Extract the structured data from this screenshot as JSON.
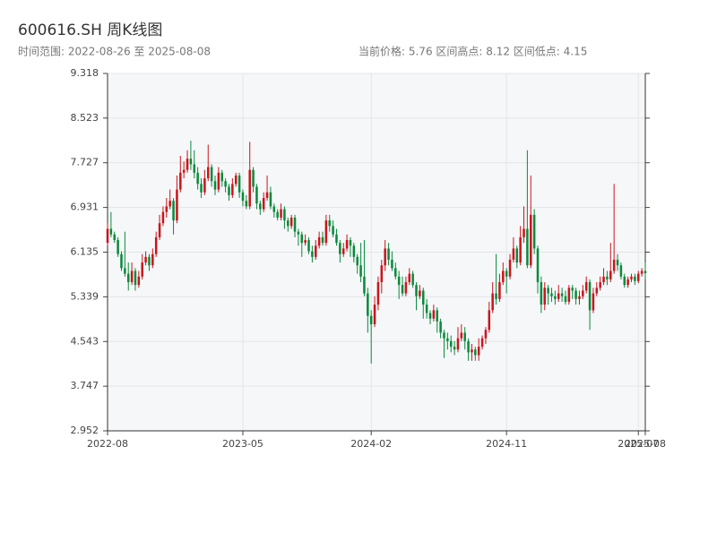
{
  "chart_data": {
    "type": "candlestick",
    "title": "600616.SH 周K线图",
    "subtitle_left": "时间范围: 2022-08-26 至 2025-08-08",
    "subtitle_right": "当前价格: 5.76  区间高点: 8.12  区间低点: 4.15",
    "up_color": "#c8161d",
    "down_color": "#0a8a3c",
    "grid": true,
    "ylim": [
      2.952,
      9.318
    ],
    "yticks": [
      2.952,
      3.747,
      4.543,
      5.339,
      6.135,
      6.931,
      7.727,
      8.523,
      9.318
    ],
    "xlim": [
      0,
      155
    ],
    "xticks": [
      {
        "value": 0,
        "label": "2022-08"
      },
      {
        "value": 39,
        "label": "2023-05"
      },
      {
        "value": 76,
        "label": "2024-02"
      },
      {
        "value": 115,
        "label": "2024-11"
      },
      {
        "value": 153,
        "label": "2025-07"
      },
      {
        "value": 155,
        "label": "2025-08"
      }
    ],
    "ohlc": [
      [
        6.3,
        6.65,
        6.25,
        6.55
      ],
      [
        6.55,
        6.85,
        6.4,
        6.45
      ],
      [
        6.45,
        6.5,
        6.3,
        6.35
      ],
      [
        6.35,
        6.4,
        6.05,
        6.1
      ],
      [
        6.1,
        6.15,
        5.8,
        5.85
      ],
      [
        5.85,
        6.5,
        5.7,
        5.75
      ],
      [
        5.75,
        5.95,
        5.45,
        5.6
      ],
      [
        5.6,
        5.95,
        5.55,
        5.8
      ],
      [
        5.8,
        5.85,
        5.45,
        5.55
      ],
      [
        5.55,
        5.8,
        5.5,
        5.7
      ],
      [
        5.7,
        6.1,
        5.65,
        5.95
      ],
      [
        5.95,
        6.15,
        5.9,
        6.05
      ],
      [
        6.05,
        6.1,
        5.8,
        5.9
      ],
      [
        5.9,
        6.2,
        5.85,
        6.1
      ],
      [
        6.1,
        6.5,
        6.05,
        6.4
      ],
      [
        6.4,
        6.8,
        6.35,
        6.65
      ],
      [
        6.65,
        6.95,
        6.6,
        6.85
      ],
      [
        6.85,
        7.1,
        6.75,
        6.95
      ],
      [
        6.95,
        7.25,
        6.9,
        7.05
      ],
      [
        7.05,
        7.1,
        6.45,
        6.7
      ],
      [
        6.7,
        7.5,
        6.65,
        7.25
      ],
      [
        7.25,
        7.85,
        7.2,
        7.55
      ],
      [
        7.55,
        7.75,
        7.45,
        7.6
      ],
      [
        7.6,
        7.95,
        7.55,
        7.8
      ],
      [
        7.8,
        8.12,
        7.6,
        7.7
      ],
      [
        7.7,
        7.95,
        7.45,
        7.55
      ],
      [
        7.55,
        7.65,
        7.25,
        7.35
      ],
      [
        7.35,
        7.45,
        7.1,
        7.2
      ],
      [
        7.2,
        7.6,
        7.15,
        7.45
      ],
      [
        7.45,
        8.05,
        7.4,
        7.65
      ],
      [
        7.65,
        7.7,
        7.3,
        7.4
      ],
      [
        7.4,
        7.5,
        7.15,
        7.25
      ],
      [
        7.25,
        7.65,
        7.2,
        7.55
      ],
      [
        7.55,
        7.6,
        7.3,
        7.4
      ],
      [
        7.4,
        7.45,
        7.2,
        7.3
      ],
      [
        7.3,
        7.35,
        7.05,
        7.15
      ],
      [
        7.15,
        7.45,
        7.1,
        7.35
      ],
      [
        7.35,
        7.55,
        7.3,
        7.5
      ],
      [
        7.5,
        7.55,
        7.1,
        7.2
      ],
      [
        7.2,
        7.25,
        6.95,
        7.05
      ],
      [
        7.05,
        7.15,
        6.9,
        6.95
      ],
      [
        6.95,
        8.1,
        6.9,
        7.6
      ],
      [
        7.6,
        7.65,
        7.2,
        7.3
      ],
      [
        7.3,
        7.35,
        6.9,
        7.0
      ],
      [
        7.0,
        7.05,
        6.8,
        6.9
      ],
      [
        6.9,
        7.2,
        6.85,
        7.1
      ],
      [
        7.1,
        7.5,
        7.05,
        7.2
      ],
      [
        7.2,
        7.3,
        6.9,
        6.95
      ],
      [
        6.95,
        7.0,
        6.75,
        6.85
      ],
      [
        6.85,
        6.9,
        6.7,
        6.75
      ],
      [
        6.75,
        7.0,
        6.7,
        6.9
      ],
      [
        6.9,
        6.95,
        6.55,
        6.7
      ],
      [
        6.7,
        6.75,
        6.5,
        6.6
      ],
      [
        6.6,
        6.8,
        6.55,
        6.75
      ],
      [
        6.75,
        6.8,
        6.4,
        6.5
      ],
      [
        6.5,
        6.55,
        6.25,
        6.45
      ],
      [
        6.45,
        6.5,
        6.05,
        6.3
      ],
      [
        6.3,
        6.45,
        6.25,
        6.35
      ],
      [
        6.35,
        6.4,
        6.1,
        6.15
      ],
      [
        6.15,
        6.25,
        5.95,
        6.05
      ],
      [
        6.05,
        6.35,
        6.0,
        6.25
      ],
      [
        6.25,
        6.5,
        6.2,
        6.4
      ],
      [
        6.4,
        6.5,
        6.25,
        6.3
      ],
      [
        6.3,
        6.8,
        6.25,
        6.7
      ],
      [
        6.7,
        6.8,
        6.5,
        6.6
      ],
      [
        6.6,
        6.7,
        6.4,
        6.45
      ],
      [
        6.45,
        6.55,
        6.25,
        6.3
      ],
      [
        6.3,
        6.35,
        5.95,
        6.1
      ],
      [
        6.1,
        6.3,
        6.05,
        6.2
      ],
      [
        6.2,
        6.45,
        6.15,
        6.35
      ],
      [
        6.35,
        6.4,
        6.05,
        6.25
      ],
      [
        6.25,
        6.3,
        5.95,
        6.05
      ],
      [
        6.05,
        6.1,
        5.75,
        5.9
      ],
      [
        5.9,
        6.3,
        5.6,
        5.7
      ],
      [
        5.7,
        6.35,
        5.35,
        5.4
      ],
      [
        5.4,
        5.5,
        4.7,
        5.0
      ],
      [
        5.0,
        5.1,
        4.15,
        4.85
      ],
      [
        4.85,
        5.35,
        4.8,
        5.2
      ],
      [
        5.2,
        5.7,
        5.1,
        5.6
      ],
      [
        5.6,
        6.0,
        5.4,
        5.9
      ],
      [
        5.9,
        6.35,
        5.8,
        6.2
      ],
      [
        6.2,
        6.3,
        5.9,
        6.0
      ],
      [
        6.0,
        6.15,
        5.8,
        5.85
      ],
      [
        5.85,
        5.95,
        5.65,
        5.7
      ],
      [
        5.7,
        5.8,
        5.3,
        5.55
      ],
      [
        5.55,
        5.7,
        5.35,
        5.4
      ],
      [
        5.4,
        5.7,
        5.35,
        5.6
      ],
      [
        5.6,
        5.85,
        5.55,
        5.75
      ],
      [
        5.75,
        5.8,
        5.5,
        5.55
      ],
      [
        5.55,
        5.6,
        5.1,
        5.35
      ],
      [
        5.35,
        5.55,
        5.3,
        5.45
      ],
      [
        5.45,
        5.5,
        4.95,
        5.2
      ],
      [
        5.2,
        5.3,
        4.95,
        5.05
      ],
      [
        5.05,
        5.1,
        4.85,
        4.95
      ],
      [
        4.95,
        5.2,
        4.9,
        5.1
      ],
      [
        5.1,
        5.15,
        4.7,
        4.9
      ],
      [
        4.9,
        4.95,
        4.6,
        4.7
      ],
      [
        4.7,
        4.75,
        4.25,
        4.6
      ],
      [
        4.6,
        4.7,
        4.4,
        4.55
      ],
      [
        4.55,
        4.65,
        4.35,
        4.45
      ],
      [
        4.45,
        4.55,
        4.3,
        4.4
      ],
      [
        4.4,
        4.8,
        4.35,
        4.6
      ],
      [
        4.6,
        4.85,
        4.55,
        4.7
      ],
      [
        4.7,
        4.8,
        4.4,
        4.55
      ],
      [
        4.55,
        4.6,
        4.2,
        4.35
      ],
      [
        4.35,
        4.5,
        4.2,
        4.4
      ],
      [
        4.4,
        4.45,
        4.2,
        4.3
      ],
      [
        4.3,
        4.6,
        4.2,
        4.45
      ],
      [
        4.45,
        4.65,
        4.4,
        4.6
      ],
      [
        4.6,
        4.8,
        4.5,
        4.75
      ],
      [
        4.75,
        5.25,
        4.7,
        5.1
      ],
      [
        5.1,
        5.6,
        5.05,
        5.4
      ],
      [
        5.4,
        6.1,
        5.2,
        5.3
      ],
      [
        5.3,
        5.75,
        5.25,
        5.6
      ],
      [
        5.6,
        5.95,
        5.55,
        5.8
      ],
      [
        5.8,
        5.85,
        5.4,
        5.7
      ],
      [
        5.7,
        6.1,
        5.65,
        6.0
      ],
      [
        6.0,
        6.4,
        5.95,
        6.2
      ],
      [
        6.2,
        6.25,
        5.85,
        5.95
      ],
      [
        5.95,
        6.6,
        5.9,
        6.4
      ],
      [
        6.4,
        6.95,
        6.3,
        6.55
      ],
      [
        6.55,
        7.95,
        5.85,
        5.9
      ],
      [
        5.9,
        7.5,
        5.85,
        6.8
      ],
      [
        6.8,
        6.9,
        6.1,
        6.2
      ],
      [
        6.2,
        6.25,
        5.4,
        5.6
      ],
      [
        5.6,
        5.7,
        5.05,
        5.2
      ],
      [
        5.2,
        5.6,
        5.1,
        5.5
      ],
      [
        5.5,
        5.55,
        5.2,
        5.4
      ],
      [
        5.4,
        5.5,
        5.25,
        5.35
      ],
      [
        5.35,
        5.45,
        5.2,
        5.3
      ],
      [
        5.3,
        5.55,
        5.25,
        5.4
      ],
      [
        5.4,
        5.5,
        5.25,
        5.35
      ],
      [
        5.35,
        5.45,
        5.2,
        5.25
      ],
      [
        5.25,
        5.55,
        5.2,
        5.5
      ],
      [
        5.5,
        5.55,
        5.3,
        5.45
      ],
      [
        5.45,
        5.5,
        5.2,
        5.3
      ],
      [
        5.3,
        5.45,
        5.2,
        5.35
      ],
      [
        5.35,
        5.55,
        5.3,
        5.45
      ],
      [
        5.45,
        5.7,
        5.4,
        5.6
      ],
      [
        5.6,
        5.65,
        4.75,
        5.1
      ],
      [
        5.1,
        5.5,
        5.05,
        5.4
      ],
      [
        5.4,
        5.6,
        5.35,
        5.5
      ],
      [
        5.5,
        5.7,
        5.45,
        5.6
      ],
      [
        5.6,
        5.85,
        5.55,
        5.7
      ],
      [
        5.7,
        5.8,
        5.55,
        5.65
      ],
      [
        5.65,
        6.3,
        5.6,
        5.8
      ],
      [
        5.8,
        7.35,
        5.75,
        6.0
      ],
      [
        6.0,
        6.1,
        5.8,
        5.9
      ],
      [
        5.9,
        5.95,
        5.65,
        5.7
      ],
      [
        5.7,
        5.75,
        5.5,
        5.55
      ],
      [
        5.55,
        5.7,
        5.5,
        5.65
      ],
      [
        5.65,
        5.75,
        5.6,
        5.7
      ],
      [
        5.7,
        5.75,
        5.55,
        5.62
      ],
      [
        5.62,
        5.8,
        5.58,
        5.75
      ],
      [
        5.75,
        5.85,
        5.7,
        5.8
      ],
      [
        5.8,
        5.95,
        5.65,
        5.76
      ]
    ]
  }
}
